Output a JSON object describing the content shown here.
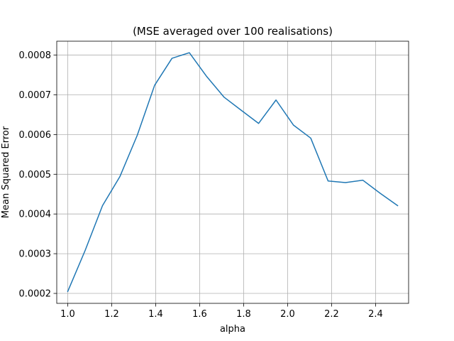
{
  "chart_data": {
    "type": "line",
    "title": "(MSE averaged over 100 realisations)",
    "xlabel": "alpha",
    "ylabel": "Mean Squared Error",
    "xlim": [
      0.95,
      2.55
    ],
    "ylim": [
      0.000175,
      0.000835
    ],
    "xticks": [
      1.0,
      1.2,
      1.4,
      1.6,
      1.8,
      2.0,
      2.2,
      2.4
    ],
    "xtick_labels": [
      "1.0",
      "1.2",
      "1.4",
      "1.6",
      "1.8",
      "2.0",
      "2.2",
      "2.4"
    ],
    "yticks": [
      0.0002,
      0.0003,
      0.0004,
      0.0005,
      0.0006,
      0.0007,
      0.0008
    ],
    "ytick_labels": [
      "0.0002",
      "0.0003",
      "0.0004",
      "0.0005",
      "0.0006",
      "0.0007",
      "0.0008"
    ],
    "grid": true,
    "series": [
      {
        "color": "#1f77b4",
        "x": [
          1.0,
          1.079,
          1.158,
          1.237,
          1.316,
          1.395,
          1.474,
          1.553,
          1.632,
          1.711,
          1.789,
          1.868,
          1.947,
          2.026,
          2.105,
          2.184,
          2.263,
          2.342,
          2.421,
          2.5
        ],
        "y": [
          0.000205,
          0.000308,
          0.000421,
          0.000494,
          0.000598,
          0.000724,
          0.000792,
          0.000806,
          0.000746,
          0.000694,
          0.000661,
          0.000628,
          0.000687,
          0.000624,
          0.000591,
          0.000483,
          0.000479,
          0.000485,
          0.000452,
          0.000421
        ]
      }
    ]
  }
}
